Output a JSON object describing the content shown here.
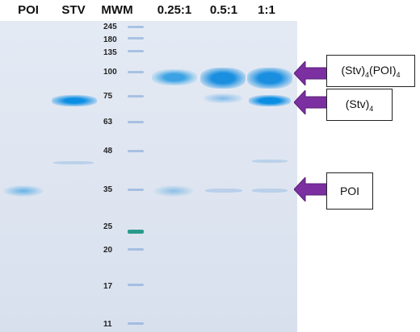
{
  "lanes": {
    "poi": "POI",
    "stv": "STV",
    "mwm": "MWM",
    "r025": "0.25:1",
    "r05": "0.5:1",
    "r1": "1:1"
  },
  "markers": [
    "245",
    "180",
    "135",
    "100",
    "75",
    "63",
    "48",
    "35",
    "25",
    "20",
    "17",
    "11"
  ],
  "callouts": {
    "complex": {
      "main": "(Stv)",
      "sub1": "4",
      "mid": "(POI)",
      "sub2": "4"
    },
    "stv": {
      "main": "(Stv)",
      "sub1": "4"
    },
    "poi": {
      "main": "POI"
    }
  },
  "colors": {
    "band": "#1a8fe0",
    "arrow": "#7b2fa0",
    "ladder_green": "#2a9a8a"
  }
}
